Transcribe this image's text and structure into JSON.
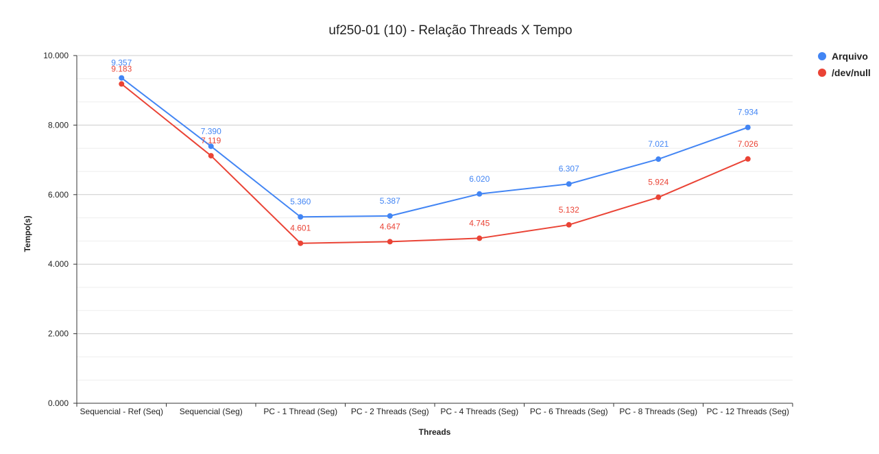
{
  "chart_data": {
    "type": "line",
    "title": "uf250-01 (10) - Relação Threads X Tempo",
    "xlabel": "Threads",
    "ylabel": "Tempo(s)",
    "ylim": [
      0,
      10
    ],
    "yticks": [
      0,
      2,
      4,
      6,
      8,
      10
    ],
    "ytick_labels": [
      "0.000",
      "2.000",
      "4.000",
      "6.000",
      "8.000",
      "10.000"
    ],
    "grid": true,
    "legend_position": "top-right",
    "categories": [
      "Sequencial - Ref (Seq)",
      "Sequencial (Seg)",
      "PC - 1 Thread (Seg)",
      "PC - 2 Threads (Seg)",
      "PC - 4 Threads (Seg)",
      "PC - 6 Threads (Seg)",
      "PC - 8 Threads (Seg)",
      "PC - 12 Threads (Seg)"
    ],
    "series": [
      {
        "name": "Arquivo",
        "color": "#4285f4",
        "values": [
          9.357,
          7.39,
          5.36,
          5.387,
          6.02,
          6.307,
          7.021,
          7.934
        ],
        "labels": [
          "9.357",
          "7.390",
          "5.360",
          "5.387",
          "6.020",
          "6.307",
          "7.021",
          "7.934"
        ]
      },
      {
        "name": "/dev/null",
        "color": "#ea4335",
        "values": [
          9.183,
          7.119,
          4.601,
          4.647,
          4.745,
          5.132,
          5.924,
          7.026
        ],
        "labels": [
          "9.183",
          "7.119",
          "4.601",
          "4.647",
          "4.745",
          "5.132",
          "5.924",
          "7.026"
        ]
      }
    ]
  }
}
